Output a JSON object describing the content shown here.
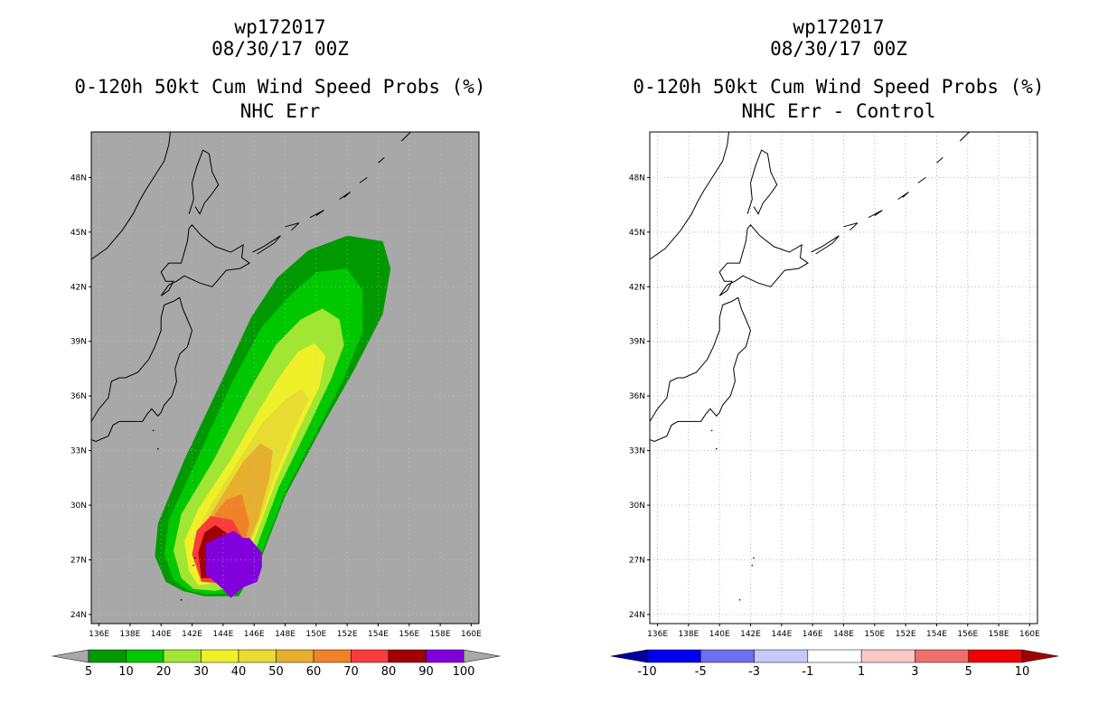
{
  "panels": [
    {
      "storm_id": "wp172017",
      "date": "08/30/17 00Z",
      "product": "0-120h 50kt Cum Wind Speed Probs (%)",
      "subtitle": "NHC Err",
      "background": "#a8a8a8"
    },
    {
      "storm_id": "wp172017",
      "date": "08/30/17 00Z",
      "product": "0-120h 50kt Cum Wind Speed Probs (%)",
      "subtitle": "NHC Err - Control",
      "background": "#ffffff"
    }
  ],
  "chart_data": [
    {
      "type": "filled-contour-map",
      "title": "0-120h 50kt Cum Wind Speed Probs (%)",
      "subtitle": "NHC Err",
      "xlim": [
        135.5,
        160.5
      ],
      "ylim": [
        23.5,
        50.5
      ],
      "x_ticks": [
        "136E",
        "138E",
        "140E",
        "142E",
        "144E",
        "146E",
        "148E",
        "150E",
        "152E",
        "154E",
        "156E",
        "158E",
        "160E"
      ],
      "y_ticks": [
        "24N",
        "27N",
        "30N",
        "33N",
        "36N",
        "39N",
        "42N",
        "45N",
        "48N"
      ],
      "colorbar": {
        "levels": [
          "5",
          "10",
          "20",
          "30",
          "40",
          "50",
          "60",
          "70",
          "80",
          "90",
          "100"
        ],
        "colors": [
          "#009a00",
          "#00c800",
          "#a0e632",
          "#f0f028",
          "#e6dc32",
          "#e6af2d",
          "#f08228",
          "#fa3c3c",
          "#a00000",
          "#8200dc"
        ]
      },
      "contours": [
        {
          "level": 5,
          "color": "#009a00",
          "points": [
            [
              141.4,
              25.3
            ],
            [
              142.8,
              25.0
            ],
            [
              145,
              25
            ],
            [
              146.5,
              27.2
            ],
            [
              148,
              30.5
            ],
            [
              150.5,
              34.5
            ],
            [
              152.5,
              37.5
            ],
            [
              154.3,
              40.5
            ],
            [
              154.8,
              43
            ],
            [
              154.3,
              44.5
            ],
            [
              152,
              44.8
            ],
            [
              149.5,
              44
            ],
            [
              147.5,
              42.5
            ],
            [
              145.8,
              40.3
            ],
            [
              144,
              37
            ],
            [
              141.5,
              32.5
            ],
            [
              139.8,
              29
            ],
            [
              139.6,
              27.2
            ],
            [
              140.3,
              25.8
            ]
          ]
        },
        {
          "level": 10,
          "color": "#00c800",
          "points": [
            [
              141.8,
              25.3
            ],
            [
              143,
              25.1
            ],
            [
              145,
              25.2
            ],
            [
              146.5,
              27.4
            ],
            [
              148,
              30.7
            ],
            [
              150.2,
              34.3
            ],
            [
              151.8,
              37
            ],
            [
              153,
              39.5
            ],
            [
              153,
              41.8
            ],
            [
              152,
              43
            ],
            [
              150,
              42.8
            ],
            [
              148.3,
              41.5
            ],
            [
              146.5,
              39.8
            ],
            [
              144.6,
              36.8
            ],
            [
              142.3,
              32.5
            ],
            [
              140.5,
              29.2
            ],
            [
              140.2,
              27.3
            ],
            [
              140.8,
              25.9
            ]
          ]
        },
        {
          "level": 20,
          "color": "#a0e632",
          "points": [
            [
              142.1,
              25.4
            ],
            [
              143.5,
              25.3
            ],
            [
              145.2,
              25.6
            ],
            [
              146.2,
              27.8
            ],
            [
              147.6,
              31
            ],
            [
              149.5,
              34.3
            ],
            [
              151,
              37
            ],
            [
              151.8,
              38.8
            ],
            [
              151.5,
              40.2
            ],
            [
              150.4,
              40.8
            ],
            [
              149,
              40.2
            ],
            [
              147.4,
              38.8
            ],
            [
              145.7,
              36.3
            ],
            [
              143.4,
              32.5
            ],
            [
              141.3,
              29.5
            ],
            [
              140.8,
              27.5
            ],
            [
              141.3,
              26
            ]
          ]
        },
        {
          "level": 30,
          "color": "#f0f028",
          "points": [
            [
              142.4,
              25.6
            ],
            [
              143.8,
              25.8
            ],
            [
              145.3,
              26.5
            ],
            [
              146.2,
              28.5
            ],
            [
              147.5,
              31.5
            ],
            [
              148.8,
              34
            ],
            [
              150.2,
              36.5
            ],
            [
              150.6,
              38.2
            ],
            [
              149.9,
              38.9
            ],
            [
              148.8,
              38.4
            ],
            [
              147.6,
              37
            ],
            [
              146.3,
              35.2
            ],
            [
              144.5,
              32.5
            ],
            [
              142.4,
              29.8
            ],
            [
              141.5,
              28
            ],
            [
              141.8,
              26.4
            ]
          ]
        },
        {
          "level": 40,
          "color": "#e6dc32",
          "points": [
            [
              142.8,
              26
            ],
            [
              144,
              26.3
            ],
            [
              145.4,
              27.2
            ],
            [
              146.3,
              29
            ],
            [
              147.3,
              31.5
            ],
            [
              148.5,
              34
            ],
            [
              149.5,
              35.8
            ],
            [
              149.1,
              36.4
            ],
            [
              148,
              35.8
            ],
            [
              146.6,
              34.6
            ],
            [
              145.1,
              32.6
            ],
            [
              143.2,
              30
            ],
            [
              142.1,
              28.2
            ],
            [
              142.2,
              26.8
            ]
          ]
        },
        {
          "level": 50,
          "color": "#e6af2d",
          "points": [
            [
              142.9,
              26.3
            ],
            [
              144.4,
              26.6
            ],
            [
              145.5,
              27.6
            ],
            [
              146.3,
              29.3
            ],
            [
              147,
              31.5
            ],
            [
              147.2,
              33
            ],
            [
              146.4,
              33.4
            ],
            [
              145.3,
              32.4
            ],
            [
              144,
              30.6
            ],
            [
              142.7,
              28.8
            ],
            [
              142.4,
              27.3
            ]
          ]
        },
        {
          "level": 60,
          "color": "#f08228",
          "points": [
            [
              143,
              26.5
            ],
            [
              144.3,
              26.8
            ],
            [
              145.3,
              27.6
            ],
            [
              145.7,
              29
            ],
            [
              145.2,
              30.6
            ],
            [
              144.2,
              30.3
            ],
            [
              143.2,
              29.2
            ],
            [
              142.7,
              28
            ]
          ]
        },
        {
          "level": 70,
          "color": "#fa3c3c",
          "points": [
            [
              142.6,
              25.8
            ],
            [
              144.1,
              25.7
            ],
            [
              145.2,
              26.7
            ],
            [
              145.4,
              28
            ],
            [
              144.6,
              29.2
            ],
            [
              143.2,
              29.4
            ],
            [
              142.3,
              28.6
            ],
            [
              142,
              27.3
            ]
          ]
        },
        {
          "level": 80,
          "color": "#a00000",
          "points": [
            [
              142.6,
              26
            ],
            [
              143.6,
              26
            ],
            [
              144.3,
              27.3
            ],
            [
              144.2,
              28.5
            ],
            [
              143.5,
              28.9
            ],
            [
              142.8,
              28.5
            ],
            [
              142.4,
              27.4
            ]
          ]
        },
        {
          "level": 90,
          "color": "#8200dc",
          "points": [
            [
              144.5,
              24.9
            ],
            [
              144.9,
              25.2
            ],
            [
              145.3,
              25.5
            ],
            [
              146.2,
              25.8
            ],
            [
              146.5,
              26.6
            ],
            [
              146.5,
              27.4
            ],
            [
              146.1,
              27.8
            ],
            [
              145.7,
              28.2
            ],
            [
              145.3,
              28.2
            ],
            [
              144.7,
              28.6
            ],
            [
              144.2,
              28.4
            ],
            [
              143.6,
              28.2
            ],
            [
              142.9,
              27.9
            ],
            [
              142.9,
              27.1
            ],
            [
              142.9,
              26.2
            ],
            [
              143.6,
              25.7
            ],
            [
              144.2,
              25.2
            ]
          ]
        }
      ]
    },
    {
      "type": "difference-map",
      "title": "0-120h 50kt Cum Wind Speed Probs (%)",
      "subtitle": "NHC Err - Control",
      "xlim": [
        135.5,
        160.5
      ],
      "ylim": [
        23.5,
        50.5
      ],
      "x_ticks": [
        "136E",
        "138E",
        "140E",
        "142E",
        "144E",
        "146E",
        "148E",
        "150E",
        "152E",
        "154E",
        "156E",
        "158E",
        "160E"
      ],
      "y_ticks": [
        "24N",
        "27N",
        "30N",
        "33N",
        "36N",
        "39N",
        "42N",
        "45N",
        "48N"
      ],
      "grid": true,
      "colorbar": {
        "levels": [
          "-10",
          "-5",
          "-3",
          "-1",
          "1",
          "3",
          "5",
          "10"
        ],
        "colors": [
          "#0000a0",
          "#0000f0",
          "#6e6ef0",
          "#c8c8fa",
          "#ffffff",
          "#fac8c8",
          "#f06e6e",
          "#f00000",
          "#a00000"
        ]
      }
    }
  ]
}
